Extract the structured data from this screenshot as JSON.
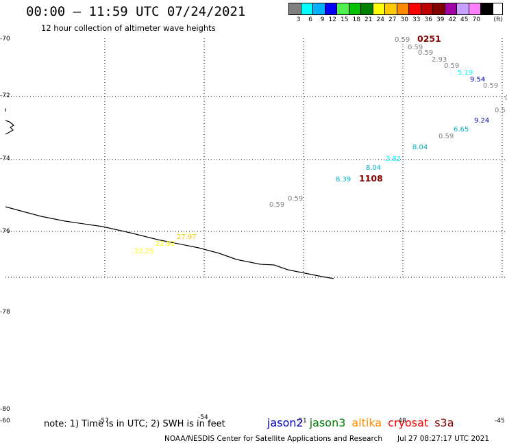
{
  "header": {
    "title": "00:00 – 11:59 UTC 07/24/2021",
    "subtitle": "12 hour collection of altimeter wave heights"
  },
  "legend": {
    "unit": "(ft)",
    "bins": [
      {
        "color": "#808080",
        "label": "3"
      },
      {
        "color": "#00ffff",
        "label": "6"
      },
      {
        "color": "#00b0ff",
        "label": "9"
      },
      {
        "color": "#0000ff",
        "label": "12"
      },
      {
        "color": "#50f050",
        "label": "15"
      },
      {
        "color": "#00c000",
        "label": "18"
      },
      {
        "color": "#008000",
        "label": "21"
      },
      {
        "color": "#ffff00",
        "label": "24"
      },
      {
        "color": "#ffc800",
        "label": "27"
      },
      {
        "color": "#ff8c00",
        "label": "30"
      },
      {
        "color": "#ff0000",
        "label": "33"
      },
      {
        "color": "#c00000",
        "label": "36"
      },
      {
        "color": "#800000",
        "label": "39"
      },
      {
        "color": "#a000a0",
        "label": "42"
      },
      {
        "color": "#c8a0ff",
        "label": "45"
      },
      {
        "color": "#ff80ff",
        "label": "70"
      },
      {
        "color": "#000000",
        "label": ""
      }
    ]
  },
  "map": {
    "lat_labels": [
      {
        "lat": -70,
        "text": "-70"
      },
      {
        "lat": -72,
        "text": "-72"
      },
      {
        "lat": -74,
        "text": "-74"
      },
      {
        "lat": -76,
        "text": "-76"
      },
      {
        "lat": -78,
        "text": "-78"
      },
      {
        "lat": -80,
        "text": "-80"
      }
    ],
    "lon_labels": [
      {
        "lon": -60,
        "text": "-60"
      },
      {
        "lon": -57,
        "text": "-57"
      },
      {
        "lon": -54,
        "text": "-54"
      },
      {
        "lon": -51,
        "text": "-51"
      },
      {
        "lon": -48,
        "text": "-48"
      },
      {
        "lon": -45,
        "text": "-45"
      }
    ],
    "pass_times": [
      {
        "text": "0251",
        "color": "#800000"
      },
      {
        "text": "1108",
        "color": "#800000"
      }
    ],
    "observations": [
      {
        "value": "0.59",
        "color": "#808080"
      },
      {
        "value": "0.59",
        "color": "#808080"
      },
      {
        "value": "0.59",
        "color": "#808080"
      },
      {
        "value": "2.93",
        "color": "#808080"
      },
      {
        "value": "0.59",
        "color": "#808080"
      },
      {
        "value": "5.19",
        "color": "#00ffff"
      },
      {
        "value": "9.54",
        "color": "#0000a0"
      },
      {
        "value": "0.59",
        "color": "#808080"
      },
      {
        "value": "0",
        "color": "#808080"
      },
      {
        "value": "0.5",
        "color": "#808080"
      },
      {
        "value": "9.24",
        "color": "#0000a0"
      },
      {
        "value": "6.65",
        "color": "#00b0c0"
      },
      {
        "value": "0.59",
        "color": "#808080"
      },
      {
        "value": "8.04",
        "color": "#00b0c0"
      },
      {
        "value": "3.82",
        "color": "#00ffff"
      },
      {
        "value": "8.04",
        "color": "#00b0c0"
      },
      {
        "value": "8.39",
        "color": "#00b0c0"
      },
      {
        "value": "0.59",
        "color": "#808080"
      },
      {
        "value": "0.59",
        "color": "#808080"
      },
      {
        "value": "27.97",
        "color": "#ffc800"
      },
      {
        "value": "22.92",
        "color": "#ffff00"
      },
      {
        "value": "22.25",
        "color": "#ffff00"
      }
    ]
  },
  "footer": {
    "note": "note: 1) Time is in UTC; 2) SWH is in feet",
    "satellites": [
      {
        "name": "jason2",
        "color": "#0000c0"
      },
      {
        "name": "jason3",
        "color": "#008000"
      },
      {
        "name": "altika",
        "color": "#ff8c00"
      },
      {
        "name": "cryosat",
        "color": "#ff0000"
      },
      {
        "name": "s3a",
        "color": "#800000"
      }
    ],
    "credit": "NOAA/NESDIS Center for Satellite Applications and Research",
    "generated": "Jul 27 08:27:17 UTC 2021"
  }
}
